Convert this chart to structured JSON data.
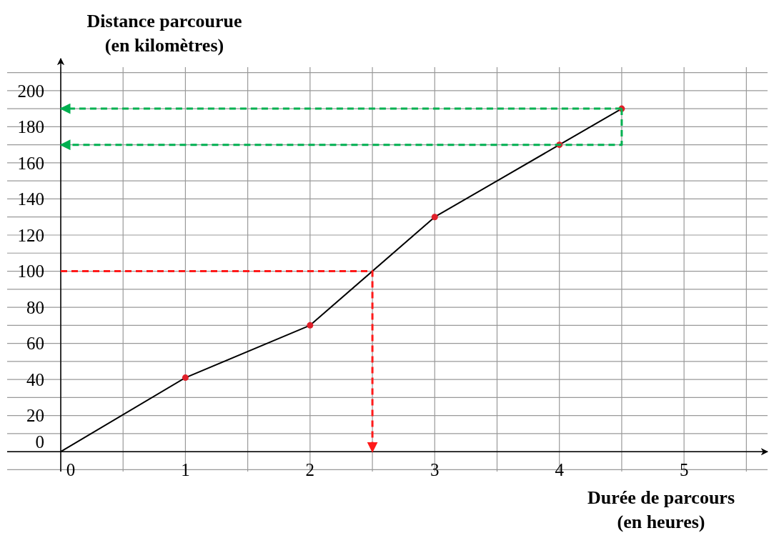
{
  "chart_data": {
    "type": "line",
    "xlabel": "Durée de parcours\n(en heures)",
    "ylabel": "Distance parcourue\n(en kilomètres)",
    "xlim": [
      0,
      5.67
    ],
    "ylim": [
      -11,
      213
    ],
    "xticks": [
      0,
      {
        "value": 0.5,
        "label": null
      },
      1,
      {
        "value": 1.5,
        "label": null
      },
      2,
      {
        "value": 2.5,
        "label": null
      },
      3,
      {
        "value": 3.5,
        "label": null
      },
      4,
      {
        "value": 4.5,
        "label": null
      },
      5,
      {
        "value": 5.5,
        "label": null
      }
    ],
    "yticks": [
      {
        "value": -10,
        "label": null
      },
      0,
      {
        "value": 10,
        "label": null
      },
      20,
      {
        "value": 30,
        "label": null
      },
      40,
      {
        "value": 50,
        "label": null
      },
      60,
      {
        "value": 70,
        "label": null
      },
      80,
      {
        "value": 90,
        "label": null
      },
      100,
      {
        "value": 110,
        "label": null
      },
      120,
      {
        "value": 130,
        "label": null
      },
      140,
      {
        "value": 150,
        "label": null
      },
      160,
      {
        "value": 170,
        "label": null
      },
      180,
      {
        "value": 190,
        "label": null
      },
      200,
      {
        "value": 210,
        "label": null
      }
    ],
    "grid": true,
    "series": [
      {
        "color": "#000000",
        "marker": "none",
        "line_style": "solid",
        "x": [
          0,
          1,
          2,
          3,
          4,
          4.5
        ],
        "values": [
          0,
          41,
          70,
          130,
          170,
          190
        ]
      },
      {
        "type": "scatter",
        "color": "#e0202a",
        "marker": "circle",
        "x": [
          1,
          2,
          3,
          4,
          4.5
        ],
        "values": [
          41,
          70,
          130,
          170,
          190
        ]
      },
      {
        "type": "line",
        "color": "#ff1a1a",
        "marker": "none",
        "line_style": "dashed",
        "x": [
          0,
          2.5,
          2.5
        ],
        "values": [
          100,
          100,
          0
        ]
      },
      {
        "type": "line",
        "color": "#00b050",
        "marker": "none",
        "line_style": "dashed",
        "x": [
          4.5,
          0
        ],
        "values": [
          190,
          190
        ]
      },
      {
        "type": "line",
        "color": "#00b050",
        "marker": "none",
        "line_style": "dashed",
        "x": [
          4.5,
          4.5,
          0
        ],
        "values": [
          190,
          170,
          170
        ]
      }
    ]
  }
}
